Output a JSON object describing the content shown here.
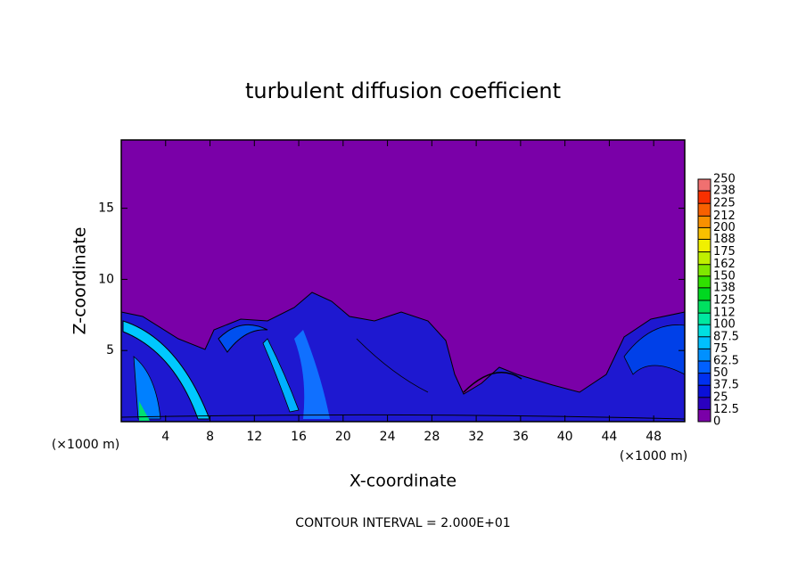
{
  "chart_data": {
    "type": "contour",
    "title": "turbulent diffusion coefficient",
    "x_label": "X-coordinate",
    "y_label": "Z-coordinate",
    "x_unit": "(×1000 m)",
    "note": "CONTOUR INTERVAL = 2.000E+01",
    "xlim": [
      0,
      50.8
    ],
    "xticks": [
      4,
      8,
      12,
      16,
      20,
      24,
      28,
      32,
      36,
      40,
      44,
      48
    ],
    "ylim": [
      0,
      19.8
    ],
    "yticks": [
      5,
      10,
      15
    ],
    "colorbar": {
      "lim": [
        0,
        250
      ],
      "ticks": [
        0,
        12.5,
        25,
        37.5,
        50,
        62.5,
        75,
        87.5,
        100,
        112,
        125,
        138,
        150,
        162,
        175,
        188,
        200,
        212,
        225,
        238,
        250
      ],
      "colors": [
        "#7a00a8",
        "#2a00c0",
        "#0a10d8",
        "#0030f0",
        "#0060ff",
        "#0090ff",
        "#00c0ff",
        "#00e0e0",
        "#00e8a0",
        "#00e060",
        "#00d820",
        "#30e000",
        "#80e800",
        "#c0f000",
        "#f0f000",
        "#f8c000",
        "#f89000",
        "#f86000",
        "#f83000",
        "#f07070"
      ]
    }
  }
}
